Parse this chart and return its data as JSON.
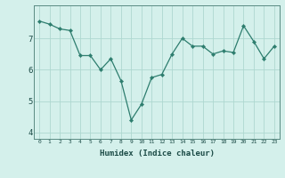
{
  "x": [
    0,
    1,
    2,
    3,
    4,
    5,
    6,
    7,
    8,
    9,
    10,
    11,
    12,
    13,
    14,
    15,
    16,
    17,
    18,
    19,
    20,
    21,
    22,
    23
  ],
  "y": [
    7.55,
    7.45,
    7.3,
    7.25,
    6.45,
    6.45,
    6.0,
    6.35,
    5.65,
    4.4,
    4.9,
    5.75,
    5.85,
    6.5,
    7.0,
    6.75,
    6.75,
    6.5,
    6.6,
    6.55,
    7.4,
    6.9,
    6.35,
    6.75
  ],
  "xlabel": "Humidex (Indice chaleur)",
  "ylim": [
    3.8,
    8.05
  ],
  "xlim": [
    -0.5,
    23.5
  ],
  "yticks": [
    4,
    5,
    6,
    7
  ],
  "xticks": [
    0,
    1,
    2,
    3,
    4,
    5,
    6,
    7,
    8,
    9,
    10,
    11,
    12,
    13,
    14,
    15,
    16,
    17,
    18,
    19,
    20,
    21,
    22,
    23
  ],
  "line_color": "#2d7d6e",
  "marker_color": "#2d7d6e",
  "bg_color": "#d4f0eb",
  "grid_color": "#aed8d0",
  "axis_color": "#5a8a82",
  "label_color": "#1a4a45"
}
